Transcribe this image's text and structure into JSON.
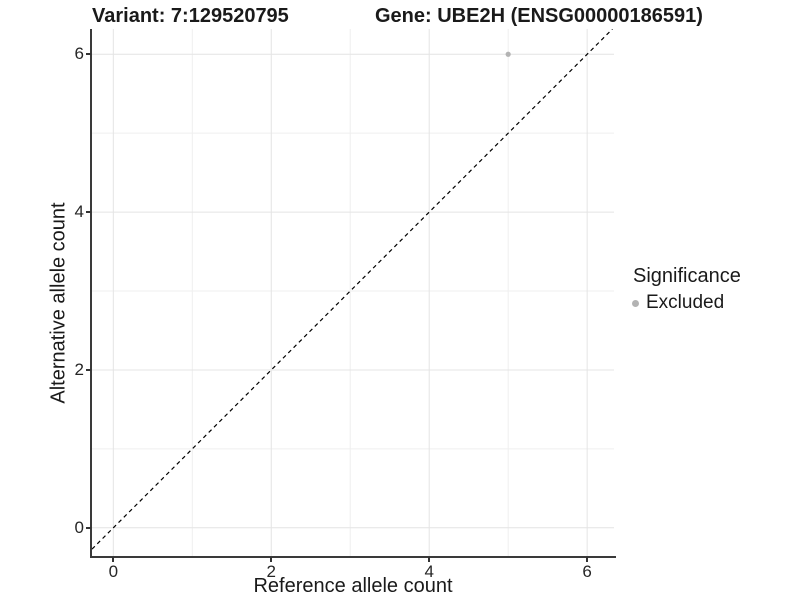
{
  "legend": {
    "title": "Significance",
    "items": [
      {
        "label": "Excluded",
        "color": "#b3b3b3"
      }
    ]
  },
  "chart_data": {
    "type": "scatter",
    "title_left": "Variant: 7:129520795",
    "title_right": "Gene: UBE2H (ENSG00000186591)",
    "xlabel": "Reference allele count",
    "ylabel": "Alternative allele count",
    "xlim": [
      -0.27,
      6.34
    ],
    "ylim": [
      -0.37,
      6.32
    ],
    "xticks": [
      0,
      2,
      4,
      6
    ],
    "yticks": [
      0,
      2,
      4,
      6
    ],
    "grid": true,
    "minor_grid": true,
    "grid_major_color": "#e4e4e4",
    "grid_minor_color": "#efefef",
    "legend_position": "right",
    "series": [
      {
        "name": "Excluded",
        "color": "#b3b3b3",
        "points": [
          {
            "x": 5,
            "y": 6
          }
        ]
      }
    ],
    "reference_line": {
      "equation": "y = x",
      "style": "dashed",
      "color": "#000000"
    }
  }
}
